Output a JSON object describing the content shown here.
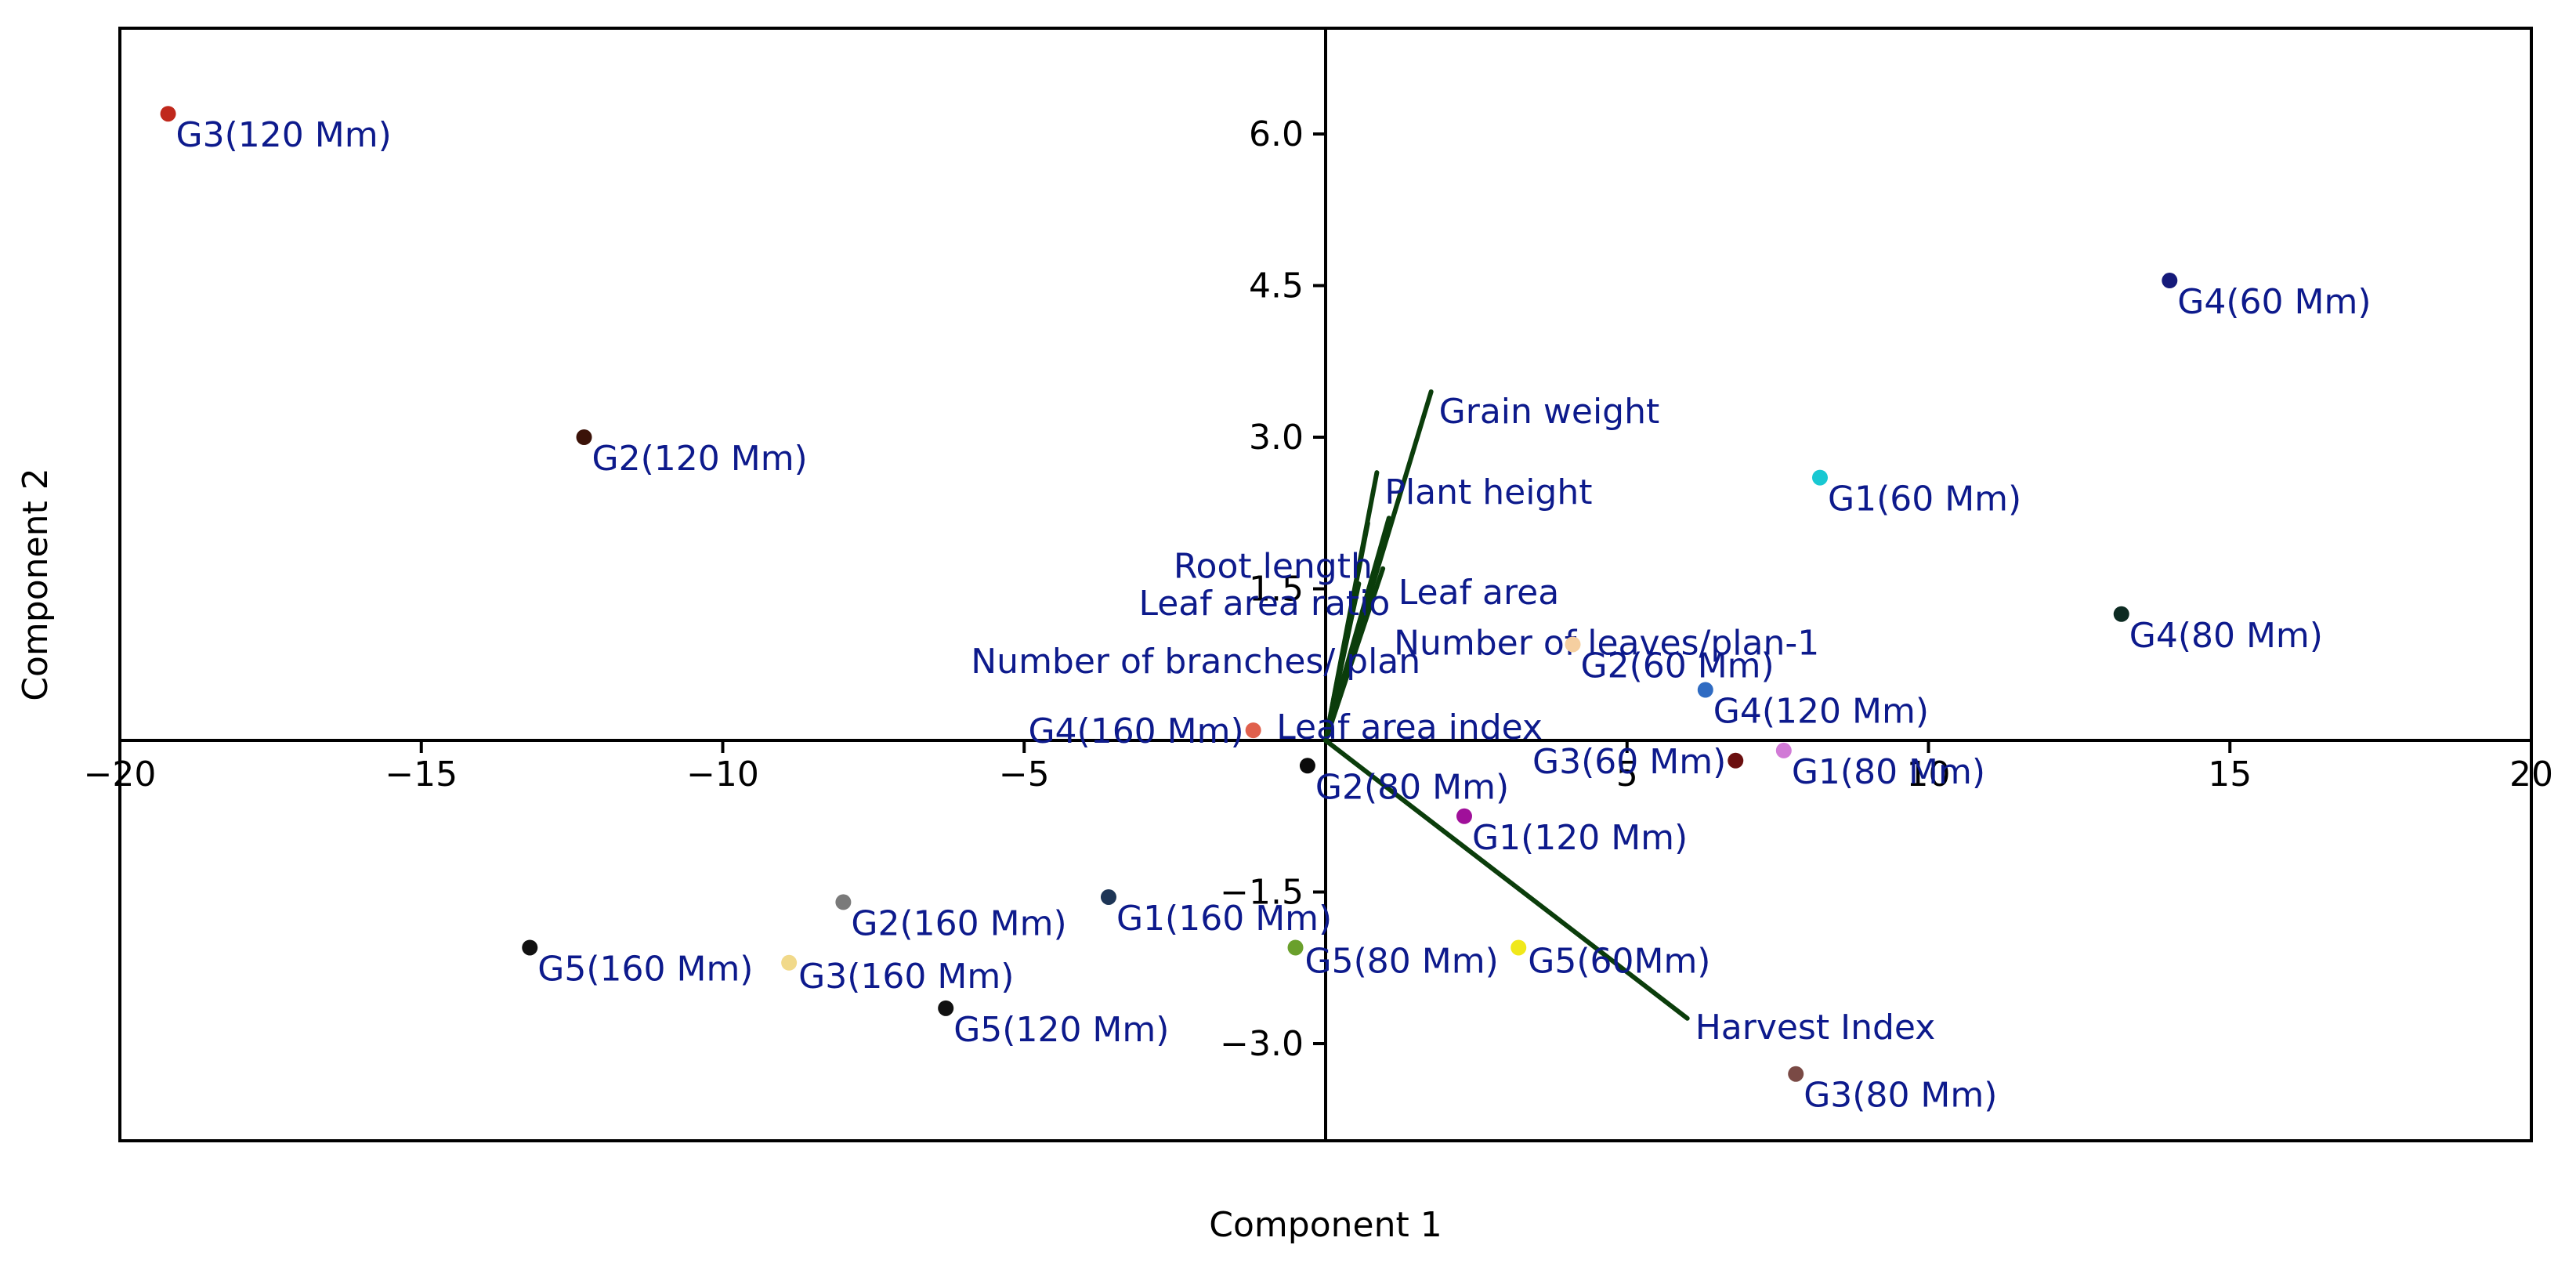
{
  "chart_data": {
    "type": "scatter",
    "subtype": "pca-biplot",
    "title": "",
    "xlabel": "Component 1",
    "ylabel": "Component 2",
    "xlim": [
      -20,
      20
    ],
    "ylim": [
      -4.0,
      7.0
    ],
    "x_ticks": [
      -20,
      -15,
      -10,
      -5,
      0,
      5,
      10,
      15,
      20
    ],
    "x_tick_labels": [
      "−20",
      "−15",
      "−10",
      "−5",
      "",
      "5",
      "10",
      "15",
      "20"
    ],
    "y_ticks": [
      -3.0,
      -1.5,
      1.5,
      3.0,
      4.5,
      6.0
    ],
    "y_tick_labels": [
      "−3.0",
      "−1.5",
      "1.5",
      "3.0",
      "4.5",
      "6.0"
    ],
    "points": [
      {
        "label": "G3(120 Mm)",
        "x": -19.2,
        "y": 6.2,
        "color": "#c0281c",
        "label_pos": "below-right"
      },
      {
        "label": "G2(120 Mm)",
        "x": -12.3,
        "y": 3.0,
        "color": "#3b1208",
        "label_pos": "below-right"
      },
      {
        "label": "G4(60 Mm)",
        "x": 14.0,
        "y": 4.55,
        "color": "#151a7a",
        "label_pos": "below-right"
      },
      {
        "label": "G1(60 Mm)",
        "x": 8.2,
        "y": 2.6,
        "color": "#19c8d2",
        "label_pos": "below-right"
      },
      {
        "label": "G4(80 Mm)",
        "x": 13.2,
        "y": 1.25,
        "color": "#0d2b22",
        "label_pos": "below-right"
      },
      {
        "label": "G2(60 Mm)",
        "x": 4.1,
        "y": 0.95,
        "color": "#f5cfa0",
        "label_pos": "below-right"
      },
      {
        "label": "G4(120 Mm)",
        "x": 6.3,
        "y": 0.5,
        "color": "#2f6bc2",
        "label_pos": "below-right"
      },
      {
        "label": "G4(160 Mm)",
        "x": -1.2,
        "y": 0.1,
        "color": "#e0604c",
        "label_pos": "left"
      },
      {
        "label": "G3(60 Mm)",
        "x": 6.8,
        "y": -0.2,
        "color": "#6b0f0f",
        "label_pos": "left"
      },
      {
        "label": "G1(80 Mm)",
        "x": 7.6,
        "y": -0.1,
        "color": "#d17ad6",
        "label_pos": "below-right"
      },
      {
        "label": "G2(80 Mm)",
        "x": -0.3,
        "y": -0.25,
        "color": "#0a0a0a",
        "label_pos": "below-right"
      },
      {
        "label": "G1(120 Mm)",
        "x": 2.3,
        "y": -0.75,
        "color": "#a0109a",
        "label_pos": "below-right"
      },
      {
        "label": "G2(160 Mm)",
        "x": -8.0,
        "y": -1.6,
        "color": "#7a7a7a",
        "label_pos": "below-right"
      },
      {
        "label": "G1(160 Mm)",
        "x": -3.6,
        "y": -1.55,
        "color": "#1d3556",
        "label_pos": "below-right"
      },
      {
        "label": "G5(160 Mm)",
        "x": -13.2,
        "y": -2.05,
        "color": "#111111",
        "label_pos": "below-right"
      },
      {
        "label": "G3(160 Mm)",
        "x": -8.9,
        "y": -2.2,
        "color": "#f1d98a",
        "label_pos": "right"
      },
      {
        "label": "G5(120 Mm)",
        "x": -6.3,
        "y": -2.65,
        "color": "#111111",
        "label_pos": "below-right"
      },
      {
        "label": "G5(80 Mm)",
        "x": -0.5,
        "y": -2.05,
        "color": "#6aa02c",
        "label_pos": "right"
      },
      {
        "label": "G5(60Mm)",
        "x": 3.2,
        "y": -2.05,
        "color": "#f0e81a",
        "label_pos": "right"
      },
      {
        "label": "G3(80 Mm)",
        "x": 7.8,
        "y": -3.3,
        "color": "#7a4a45",
        "label_pos": "below-right"
      }
    ],
    "loadings": [
      {
        "label": "Grain weight",
        "x": 1.75,
        "y": 3.45
      },
      {
        "label": "Plant height",
        "x": 0.85,
        "y": 2.65
      },
      {
        "label": "Root length",
        "x": 0.7,
        "y": 2.15
      },
      {
        "label": "Leaf area",
        "x": 1.05,
        "y": 2.2
      },
      {
        "label": "Number of leaves/plan-1",
        "x": 0.95,
        "y": 1.7
      },
      {
        "label": "Leaf area ratio",
        "x": 0.55,
        "y": 1.55
      },
      {
        "label": "Number of branches/ plan",
        "x": 0.6,
        "y": 1.25
      },
      {
        "label": "Leaf area index",
        "x": 0.25,
        "y": 0.45
      },
      {
        "label": "Harvest Index",
        "x": 6.0,
        "y": -2.75
      }
    ]
  }
}
